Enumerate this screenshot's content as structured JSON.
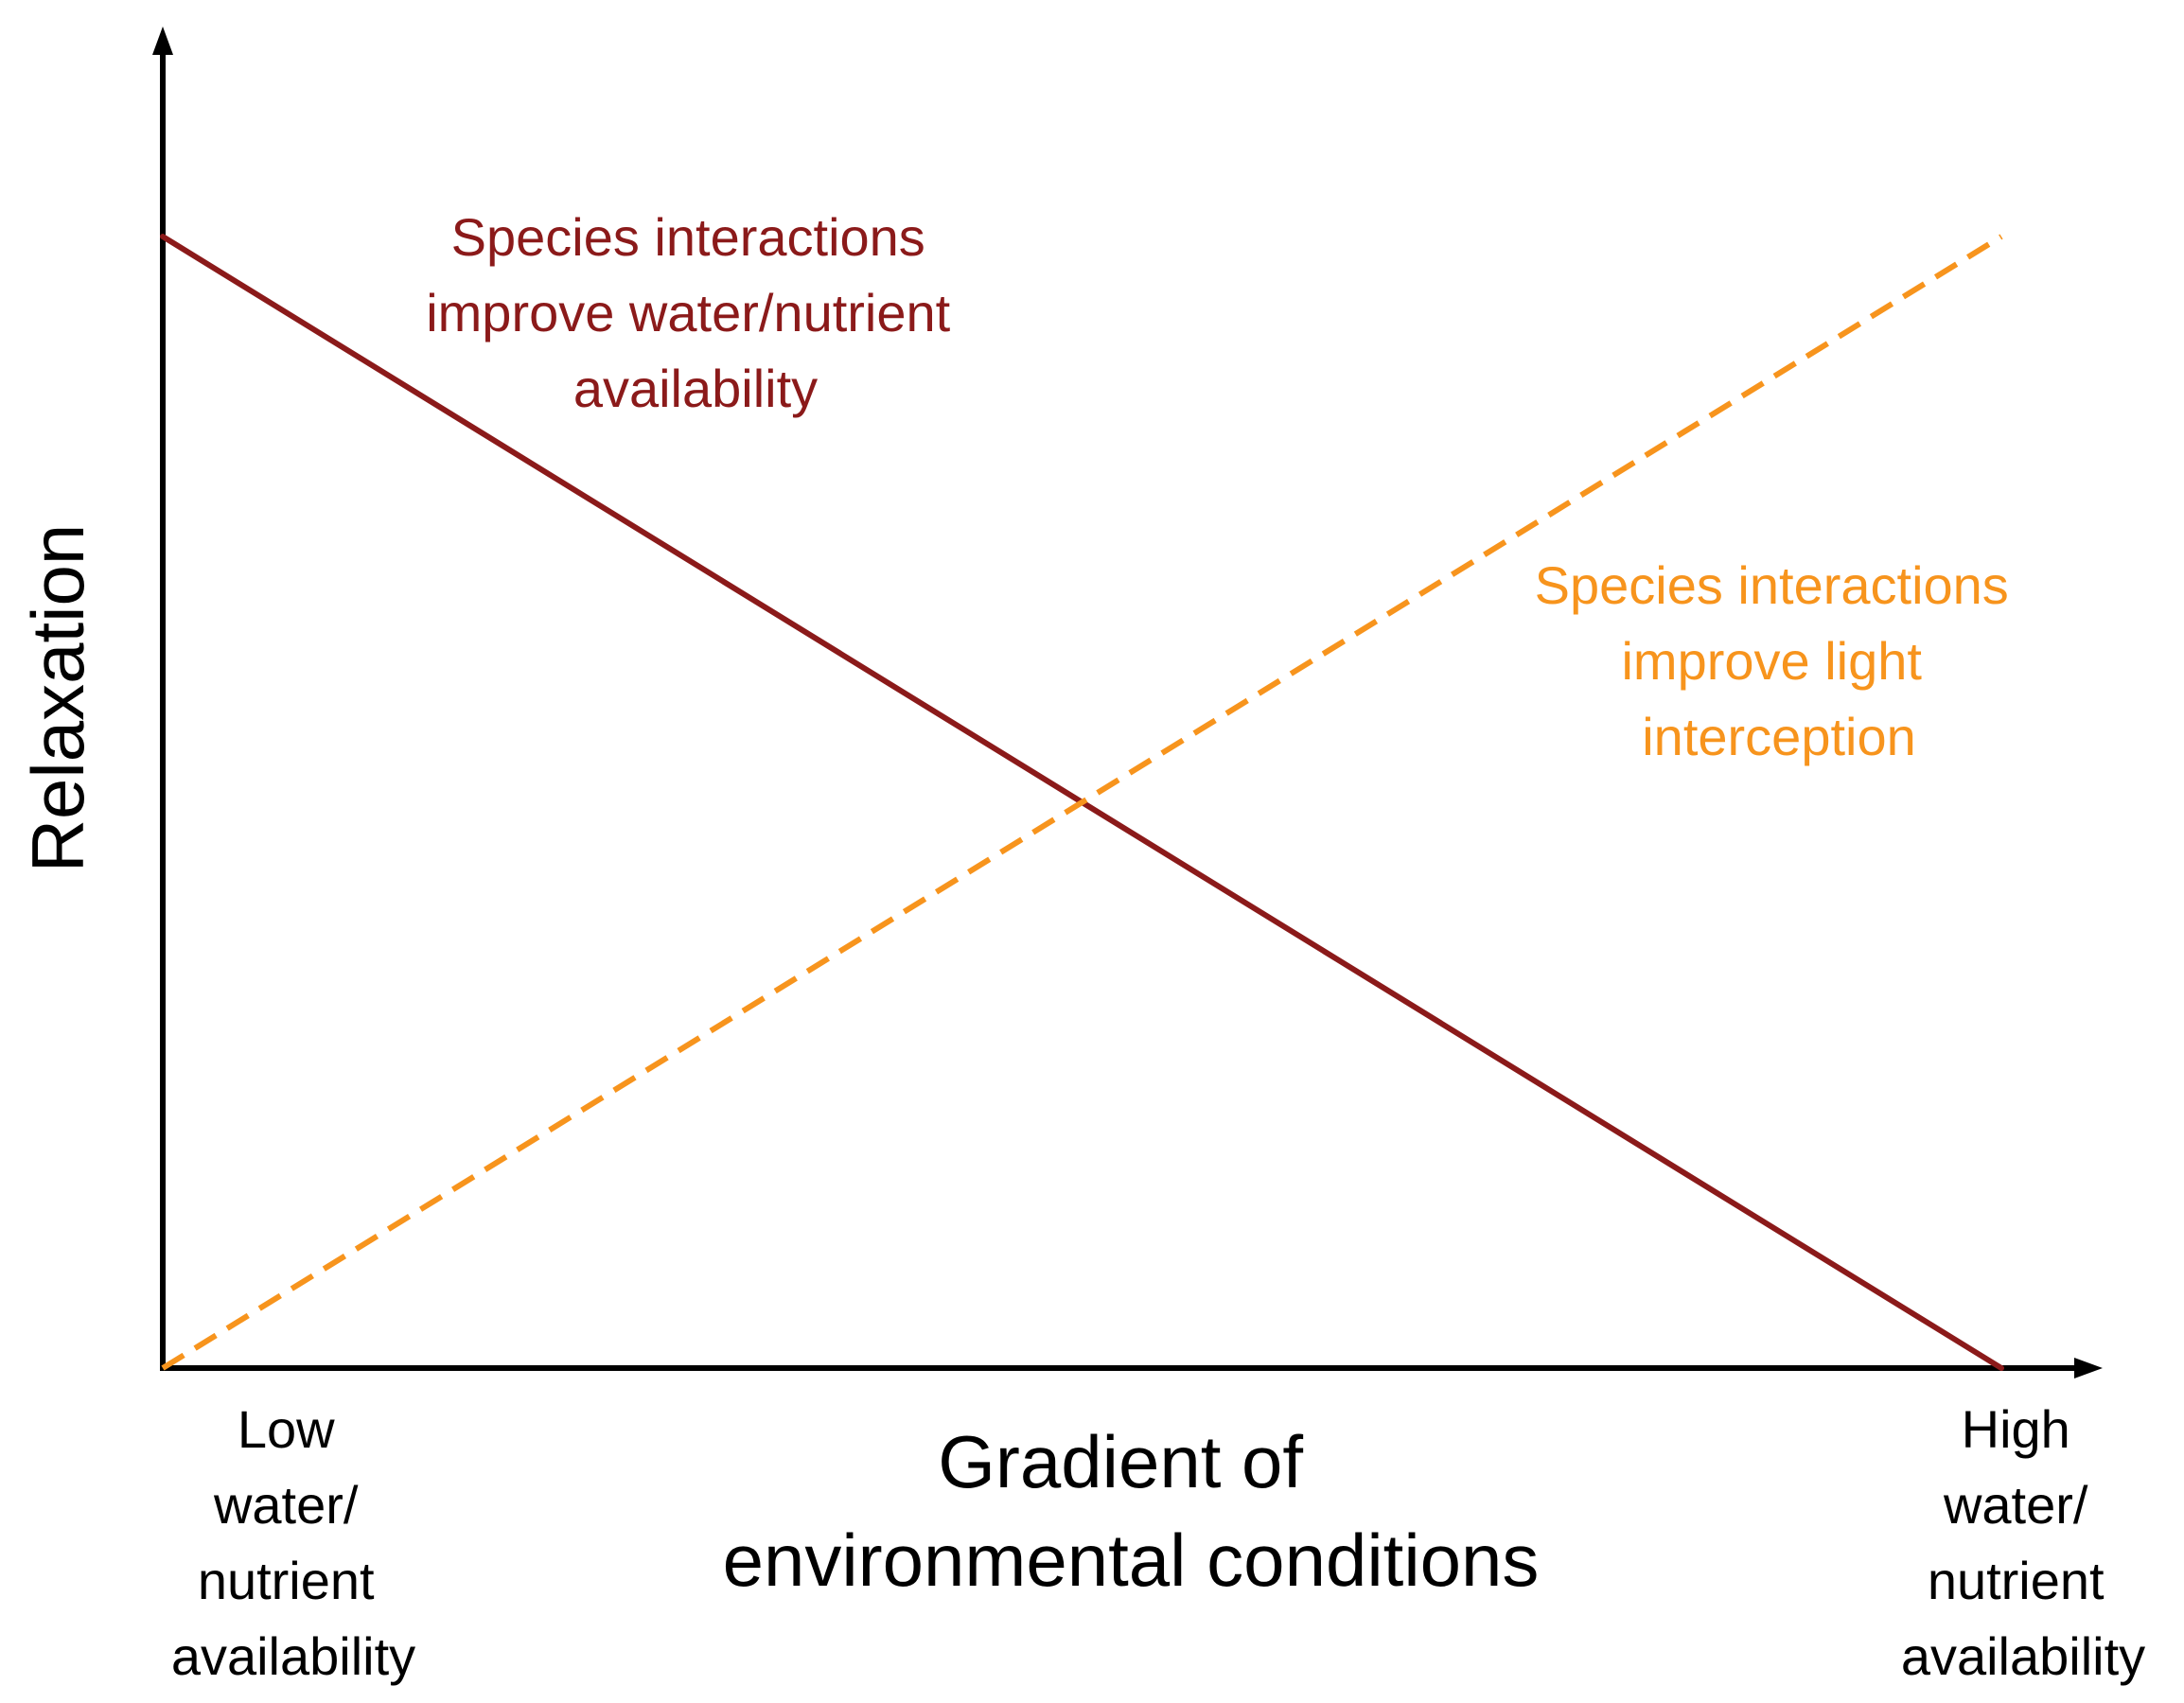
{
  "chart_data": {
    "type": "line",
    "title": "",
    "xlabel": [
      "Gradient of",
      "environmental conditions"
    ],
    "ylabel": "Relaxation",
    "x_range": [
      0,
      1
    ],
    "y_range": [
      0,
      1
    ],
    "axis_end_labels": {
      "low": [
        "Low",
        "water/",
        "nutrient",
        "availability"
      ],
      "high": [
        "High",
        "water/",
        "nutrient",
        "availability"
      ]
    },
    "series": [
      {
        "name": "water-nutrient",
        "label": [
          "Species interactions",
          "improve water/nutrient",
          "availability"
        ],
        "color": "#8b1a1a",
        "style": "solid",
        "x": [
          0,
          1
        ],
        "y": [
          1,
          0
        ]
      },
      {
        "name": "light",
        "label": [
          "Species interactions",
          "improve light",
          "interception"
        ],
        "color": "#f7941d",
        "style": "dashed",
        "x": [
          0,
          1
        ],
        "y": [
          0,
          1
        ]
      }
    ]
  }
}
